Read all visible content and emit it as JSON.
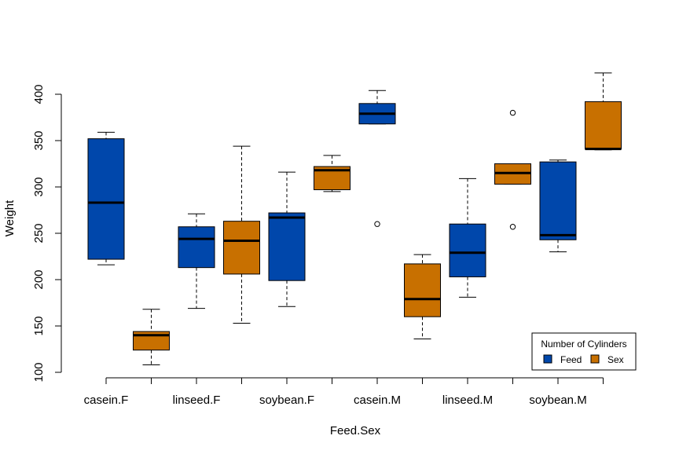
{
  "chart_data": {
    "type": "boxplot",
    "title": "",
    "xlabel": "Feed.Sex",
    "ylabel": "Weight",
    "ylim": [
      100,
      425
    ],
    "yticks": [
      100,
      150,
      200,
      250,
      300,
      350,
      400
    ],
    "xtick_labels": [
      "casein.F",
      "linseed.F",
      "soybean.F",
      "casein.M",
      "linseed.M",
      "soybean.M"
    ],
    "grid": false,
    "colors": {
      "Feed": "#0047AB",
      "Sex": "#C87000"
    },
    "legend": {
      "title": "Number of Cylinders",
      "position": "bottom-right",
      "entries": [
        {
          "label": "Feed",
          "color": "#0047AB"
        },
        {
          "label": "Sex",
          "color": "#C87000"
        }
      ]
    },
    "boxes": [
      {
        "series": "Feed",
        "whisker_low": 216,
        "q1": 222,
        "median": 283,
        "q3": 352,
        "whisker_high": 359,
        "outliers": []
      },
      {
        "series": "Sex",
        "whisker_low": 108,
        "q1": 124,
        "median": 140,
        "q3": 144,
        "whisker_high": 168,
        "outliers": []
      },
      {
        "series": "Feed",
        "whisker_low": 169,
        "q1": 213,
        "median": 244,
        "q3": 257,
        "whisker_high": 271,
        "outliers": []
      },
      {
        "series": "Sex",
        "whisker_low": 153,
        "q1": 206,
        "median": 242,
        "q3": 263,
        "whisker_high": 344,
        "outliers": []
      },
      {
        "series": "Feed",
        "whisker_low": 171,
        "q1": 199,
        "median": 267,
        "q3": 272,
        "whisker_high": 316,
        "outliers": []
      },
      {
        "series": "Sex",
        "whisker_low": 295,
        "q1": 297,
        "median": 318,
        "q3": 322,
        "whisker_high": 334,
        "outliers": []
      },
      {
        "series": "Feed",
        "whisker_low": 368,
        "q1": 368,
        "median": 379,
        "q3": 390,
        "whisker_high": 404,
        "outliers": [
          260
        ]
      },
      {
        "series": "Sex",
        "whisker_low": 136,
        "q1": 160,
        "median": 179,
        "q3": 217,
        "whisker_high": 227,
        "outliers": []
      },
      {
        "series": "Feed",
        "whisker_low": 181,
        "q1": 203,
        "median": 229,
        "q3": 260,
        "whisker_high": 309,
        "outliers": []
      },
      {
        "series": "Sex",
        "whisker_low": 303,
        "q1": 303,
        "median": 315,
        "q3": 325,
        "whisker_high": 325,
        "outliers": [
          257,
          380
        ]
      },
      {
        "series": "Feed",
        "whisker_low": 230,
        "q1": 243,
        "median": 248,
        "q3": 327,
        "whisker_high": 329,
        "outliers": []
      },
      {
        "series": "Sex",
        "whisker_low": 340,
        "q1": 341,
        "median": 341,
        "q3": 392,
        "whisker_high": 423,
        "outliers": []
      }
    ]
  }
}
